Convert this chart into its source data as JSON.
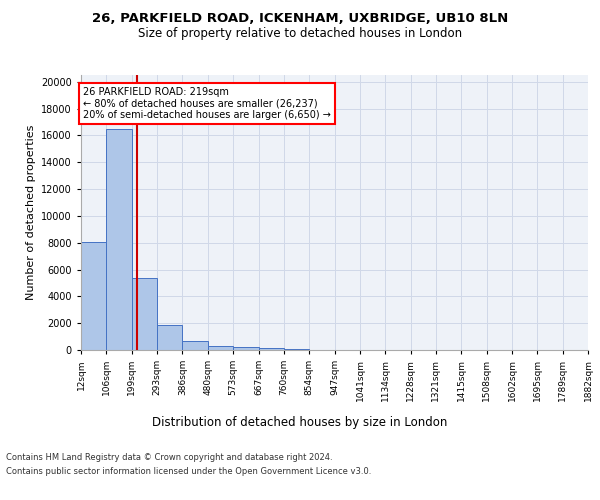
{
  "title1": "26, PARKFIELD ROAD, ICKENHAM, UXBRIDGE, UB10 8LN",
  "title2": "Size of property relative to detached houses in London",
  "xlabel": "Distribution of detached houses by size in London",
  "ylabel": "Number of detached properties",
  "bar_values": [
    8050,
    16500,
    5400,
    1850,
    650,
    320,
    200,
    160,
    110,
    30,
    15,
    10,
    8,
    5,
    4,
    3,
    2,
    2,
    2,
    1
  ],
  "bin_edges": [
    12,
    106,
    199,
    293,
    386,
    480,
    573,
    667,
    760,
    854,
    947,
    1041,
    1134,
    1228,
    1321,
    1415,
    1508,
    1602,
    1695,
    1789,
    1882
  ],
  "tick_labels": [
    "12sqm",
    "106sqm",
    "199sqm",
    "293sqm",
    "386sqm",
    "480sqm",
    "573sqm",
    "667sqm",
    "760sqm",
    "854sqm",
    "947sqm",
    "1041sqm",
    "1134sqm",
    "1228sqm",
    "1321sqm",
    "1415sqm",
    "1508sqm",
    "1602sqm",
    "1695sqm",
    "1789sqm",
    "1882sqm"
  ],
  "bar_color": "#aec6e8",
  "bar_edge_color": "#4472c4",
  "grid_color": "#d0d8e8",
  "bg_color": "#eef2f8",
  "property_size": 219,
  "red_line_color": "#cc0000",
  "annotation_line1": "26 PARKFIELD ROAD: 219sqm",
  "annotation_line2": "← 80% of detached houses are smaller (26,237)",
  "annotation_line3": "20% of semi-detached houses are larger (6,650) →",
  "footnote1": "Contains HM Land Registry data © Crown copyright and database right 2024.",
  "footnote2": "Contains public sector information licensed under the Open Government Licence v3.0.",
  "ylim": [
    0,
    20500
  ],
  "yticks": [
    0,
    2000,
    4000,
    6000,
    8000,
    10000,
    12000,
    14000,
    16000,
    18000,
    20000
  ]
}
